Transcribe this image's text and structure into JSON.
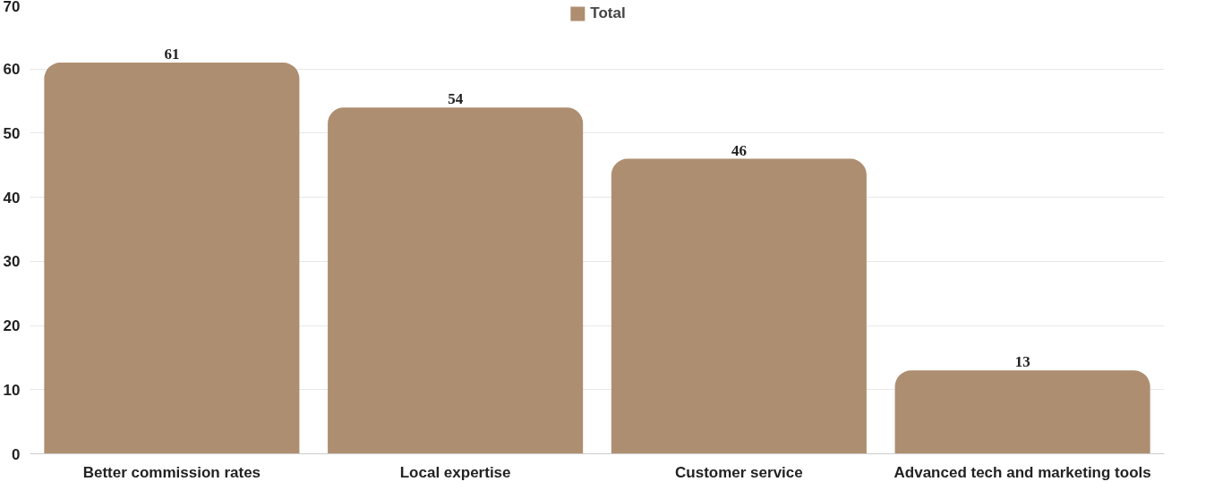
{
  "chart_data": {
    "type": "bar",
    "categories": [
      "Better commission rates",
      "Local expertise",
      "Customer service",
      "Advanced tech and marketing tools"
    ],
    "series": [
      {
        "name": "Total",
        "color": "#ae8e70",
        "values": [
          61,
          54,
          46,
          13
        ]
      }
    ],
    "ylim": [
      0,
      70
    ],
    "yticks": [
      0,
      10,
      20,
      30,
      40,
      50,
      60,
      70
    ],
    "grid": "y",
    "legend": "top",
    "data_labels": true
  }
}
